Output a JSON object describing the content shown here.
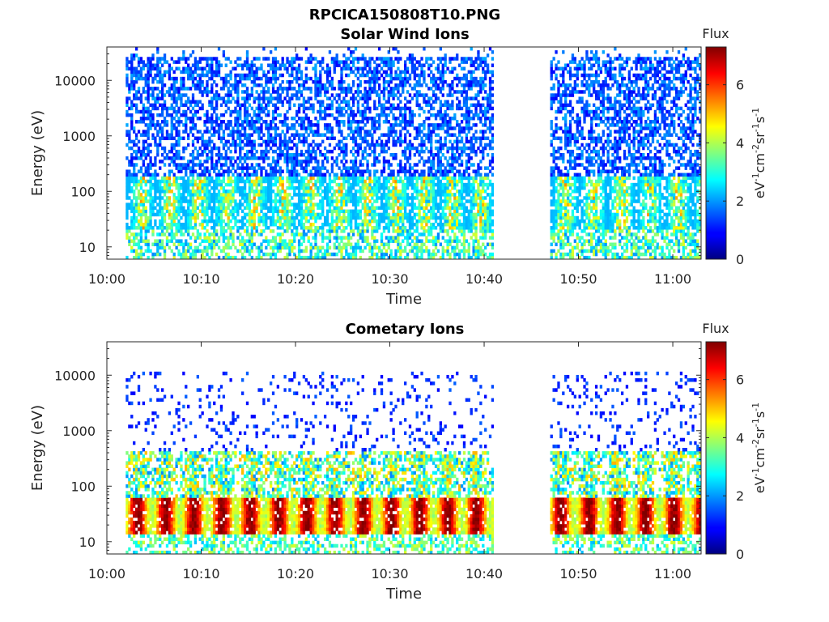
{
  "figure_title": "RPCICA150808T10.PNG",
  "chart_data": [
    {
      "type": "heatmap",
      "title": "Solar Wind Ions",
      "xlabel": "Time",
      "ylabel": "Energy (eV)",
      "x_ticks": [
        "10:00",
        "10:10",
        "10:20",
        "10:30",
        "10:40",
        "10:50",
        "11:00"
      ],
      "y_ticks": [
        "10",
        "100",
        "1000",
        "10000"
      ],
      "y_scale": "log",
      "xlim": [
        "10:00",
        "11:03"
      ],
      "ylim": [
        6,
        40000
      ],
      "colorbar": {
        "title": "Flux",
        "label": "eV-1cm-2sr-1s-1",
        "ticks": [
          "0",
          "2",
          "4",
          "6"
        ],
        "range": [
          0,
          7.3
        ],
        "colormap": "jet"
      },
      "data_gaps": [
        [
          "10:41",
          "10:47"
        ]
      ],
      "data_segments": [
        [
          "10:02",
          "10:41"
        ],
        [
          "10:47",
          "11:03"
        ]
      ]
    },
    {
      "type": "heatmap",
      "title": "Cometary Ions",
      "xlabel": "Time",
      "ylabel": "Energy (eV)",
      "x_ticks": [
        "10:00",
        "10:10",
        "10:20",
        "10:30",
        "10:40",
        "10:50",
        "11:00"
      ],
      "y_ticks": [
        "10",
        "100",
        "1000",
        "10000"
      ],
      "y_scale": "log",
      "xlim": [
        "10:00",
        "11:03"
      ],
      "ylim": [
        6,
        40000
      ],
      "colorbar": {
        "title": "Flux",
        "label": "eV-1cm-2sr-1s-1",
        "ticks": [
          "0",
          "2",
          "4",
          "6"
        ],
        "range": [
          0,
          7.3
        ],
        "colormap": "jet"
      },
      "data_gaps": [
        [
          "10:41",
          "10:47"
        ]
      ],
      "data_segments": [
        [
          "10:02",
          "10:41"
        ],
        [
          "10:47",
          "11:03"
        ]
      ]
    }
  ]
}
